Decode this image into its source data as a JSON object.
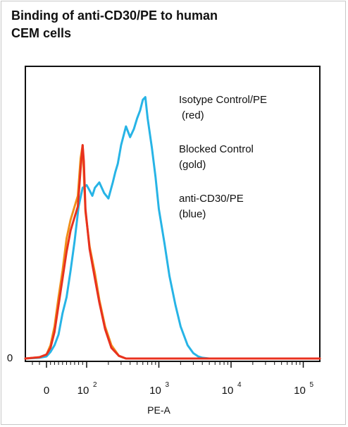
{
  "chart_data": {
    "type": "line",
    "title_lines": [
      "Binding of anti-CD30/PE to human",
      "CEM cells"
    ],
    "xlabel": "PE-A",
    "ylabel": "",
    "x_scale": "biexponential",
    "xlim": [
      -30,
      200000
    ],
    "ylim": [
      0,
      100
    ],
    "x_tick_labels": [
      {
        "value": 0,
        "label": "0",
        "exponent": ""
      },
      {
        "value": 100,
        "label": "10",
        "exponent": "2"
      },
      {
        "value": 1000,
        "label": "10",
        "exponent": "3"
      },
      {
        "value": 10000,
        "label": "10",
        "exponent": "4"
      },
      {
        "value": 100000,
        "label": "10",
        "exponent": "5"
      }
    ],
    "y_tick_labels": [
      {
        "value": 0,
        "label": "0"
      }
    ],
    "grid": false,
    "legend": [
      {
        "line1": "Isotype Control/PE",
        "line2": "(red)",
        "color": "#e8311f"
      },
      {
        "line1": "Blocked Control",
        "line2": "(gold)",
        "color": "#f0901a"
      },
      {
        "line1": "anti-CD30/PE",
        "line2": "(blue)",
        "color": "#27b4e6"
      }
    ],
    "series": [
      {
        "name": "anti-CD30/PE",
        "color": "#27b4e6",
        "points": [
          [
            -30,
            0
          ],
          [
            -10,
            0.3
          ],
          [
            0,
            0.8
          ],
          [
            10,
            2.5
          ],
          [
            20,
            5
          ],
          [
            30,
            9
          ],
          [
            40,
            17
          ],
          [
            50,
            23
          ],
          [
            60,
            33
          ],
          [
            70,
            44
          ],
          [
            80,
            57
          ],
          [
            90,
            64
          ],
          [
            100,
            65
          ],
          [
            110,
            63
          ],
          [
            120,
            61
          ],
          [
            130,
            64
          ],
          [
            150,
            66
          ],
          [
            175,
            62
          ],
          [
            200,
            60
          ],
          [
            230,
            66
          ],
          [
            250,
            70
          ],
          [
            270,
            73
          ],
          [
            300,
            80
          ],
          [
            350,
            87
          ],
          [
            400,
            83
          ],
          [
            450,
            86
          ],
          [
            500,
            90
          ],
          [
            550,
            93
          ],
          [
            600,
            97
          ],
          [
            650,
            98
          ],
          [
            700,
            90
          ],
          [
            800,
            79
          ],
          [
            900,
            68
          ],
          [
            1000,
            56
          ],
          [
            1200,
            43
          ],
          [
            1400,
            31
          ],
          [
            1700,
            20
          ],
          [
            2000,
            12
          ],
          [
            2500,
            5
          ],
          [
            3000,
            2
          ],
          [
            3500,
            0.8
          ],
          [
            4000,
            0.3
          ],
          [
            5000,
            0
          ],
          [
            200000,
            0
          ]
        ]
      },
      {
        "name": "Blocked Control",
        "color": "#f0901a",
        "points": [
          [
            -30,
            0
          ],
          [
            -10,
            0.5
          ],
          [
            0,
            1.5
          ],
          [
            10,
            5
          ],
          [
            20,
            12
          ],
          [
            30,
            23
          ],
          [
            40,
            33
          ],
          [
            50,
            45
          ],
          [
            60,
            52
          ],
          [
            70,
            57
          ],
          [
            78,
            61
          ],
          [
            85,
            75
          ],
          [
            90,
            80
          ],
          [
            97,
            55
          ],
          [
            110,
            42
          ],
          [
            130,
            32
          ],
          [
            150,
            22
          ],
          [
            180,
            12
          ],
          [
            220,
            5
          ],
          [
            280,
            1
          ],
          [
            350,
            0
          ],
          [
            200000,
            0
          ]
        ]
      },
      {
        "name": "Isotype Control/PE",
        "color": "#e8311f",
        "points": [
          [
            -30,
            0
          ],
          [
            -10,
            0.5
          ],
          [
            0,
            1.5
          ],
          [
            10,
            4
          ],
          [
            20,
            10
          ],
          [
            30,
            20
          ],
          [
            40,
            30
          ],
          [
            50,
            40
          ],
          [
            60,
            48
          ],
          [
            70,
            53
          ],
          [
            78,
            57
          ],
          [
            85,
            71
          ],
          [
            90,
            80
          ],
          [
            93,
            74
          ],
          [
            97,
            56
          ],
          [
            110,
            41
          ],
          [
            130,
            30
          ],
          [
            150,
            21
          ],
          [
            180,
            11
          ],
          [
            220,
            4
          ],
          [
            280,
            1
          ],
          [
            350,
            0
          ],
          [
            200000,
            0
          ]
        ]
      }
    ]
  }
}
